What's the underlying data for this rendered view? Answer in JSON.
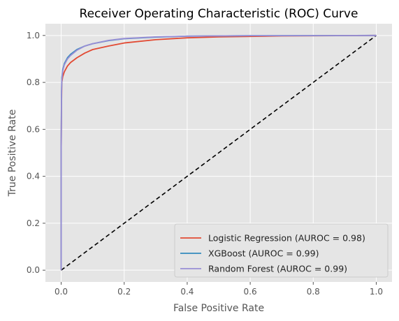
{
  "chart_data": {
    "type": "line",
    "title": "Receiver Operating Characteristic (ROC) Curve",
    "xlabel": "False Positive Rate",
    "ylabel": "True Positive Rate",
    "xlim": [
      -0.05,
      1.05
    ],
    "ylim": [
      -0.05,
      1.05
    ],
    "xticks": [
      "0.0",
      "0.2",
      "0.4",
      "0.6",
      "0.8",
      "1.0"
    ],
    "yticks": [
      "0.0",
      "0.2",
      "0.4",
      "0.6",
      "0.8",
      "1.0"
    ],
    "grid": true,
    "legend_position": "lower-right",
    "series": [
      {
        "name": "Logistic Regression (AUROC = 0.98)",
        "color": "#E24A33",
        "points": [
          [
            0,
            0
          ],
          [
            0,
            0.5
          ],
          [
            0.001,
            0.7
          ],
          [
            0.002,
            0.8
          ],
          [
            0.005,
            0.825
          ],
          [
            0.01,
            0.845
          ],
          [
            0.02,
            0.87
          ],
          [
            0.03,
            0.885
          ],
          [
            0.05,
            0.905
          ],
          [
            0.075,
            0.925
          ],
          [
            0.1,
            0.94
          ],
          [
            0.15,
            0.955
          ],
          [
            0.2,
            0.968
          ],
          [
            0.3,
            0.982
          ],
          [
            0.4,
            0.99
          ],
          [
            0.5,
            0.994
          ],
          [
            0.7,
            0.998
          ],
          [
            1.0,
            1.0
          ]
        ]
      },
      {
        "name": "XGBoost (AUROC = 0.99)",
        "color": "#348ABD",
        "points": [
          [
            0,
            0
          ],
          [
            0,
            0.5
          ],
          [
            0.001,
            0.75
          ],
          [
            0.002,
            0.82
          ],
          [
            0.005,
            0.855
          ],
          [
            0.01,
            0.88
          ],
          [
            0.02,
            0.905
          ],
          [
            0.03,
            0.92
          ],
          [
            0.05,
            0.94
          ],
          [
            0.075,
            0.955
          ],
          [
            0.1,
            0.965
          ],
          [
            0.15,
            0.978
          ],
          [
            0.2,
            0.986
          ],
          [
            0.3,
            0.993
          ],
          [
            0.4,
            0.997
          ],
          [
            0.6,
            0.999
          ],
          [
            1.0,
            1.0
          ]
        ]
      },
      {
        "name": "Random Forest (AUROC = 0.99)",
        "color": "#988ED5",
        "points": [
          [
            0,
            0
          ],
          [
            0,
            0.5
          ],
          [
            0.001,
            0.74
          ],
          [
            0.002,
            0.81
          ],
          [
            0.005,
            0.85
          ],
          [
            0.01,
            0.875
          ],
          [
            0.02,
            0.9
          ],
          [
            0.03,
            0.915
          ],
          [
            0.05,
            0.937
          ],
          [
            0.075,
            0.955
          ],
          [
            0.1,
            0.965
          ],
          [
            0.15,
            0.979
          ],
          [
            0.2,
            0.987
          ],
          [
            0.3,
            0.994
          ],
          [
            0.4,
            0.997
          ],
          [
            0.6,
            0.999
          ],
          [
            1.0,
            1.0
          ]
        ]
      },
      {
        "name": "",
        "color": "#000000",
        "dashed": true,
        "points": [
          [
            0,
            0
          ],
          [
            1,
            1
          ]
        ]
      }
    ]
  }
}
